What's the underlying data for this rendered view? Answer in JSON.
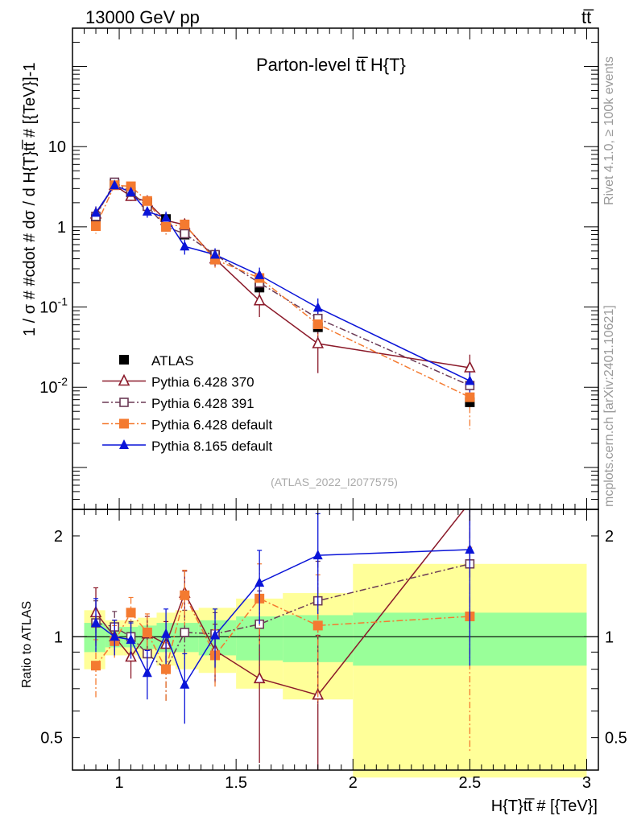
{
  "header": {
    "left": "13000 GeV pp",
    "right": "tt̅"
  },
  "side_labels": {
    "rivet": "Rivet 4.1.0, ≥ 100k events",
    "mcplots": "mcplots.cern.ch [arXiv:2401.10621]"
  },
  "chart_data": [
    {
      "type": "line",
      "panel": "main",
      "title": "Parton-level tt̅ H{T}",
      "ylabel": "1 / σ # #cdot # dσ / d H{T}tt̅ # [{TeV}]-1",
      "xlabel": "H{T}tt̅ # [{TeV}]",
      "yscale": "log",
      "ylim": [
        0.0003,
        300
      ],
      "xlim": [
        0.8,
        3.05
      ],
      "yticks": [
        {
          "value": 0.01,
          "label": "10-2"
        },
        {
          "value": 0.1,
          "label": "10-1"
        },
        {
          "value": 1,
          "label": "1"
        },
        {
          "value": 10,
          "label": "10"
        }
      ],
      "watermark": "(ATLAS_2022_I2077575)",
      "bins": [
        [
          0.85,
          0.94
        ],
        [
          0.94,
          1.02
        ],
        [
          1.02,
          1.08
        ],
        [
          1.08,
          1.16
        ],
        [
          1.16,
          1.24
        ],
        [
          1.24,
          1.34
        ],
        [
          1.34,
          1.5
        ],
        [
          1.5,
          1.7
        ],
        [
          1.7,
          2.0
        ],
        [
          2.0,
          3.0
        ]
      ],
      "x": [
        0.9,
        0.98,
        1.05,
        1.12,
        1.2,
        1.28,
        1.41,
        1.6,
        1.85,
        2.5
      ],
      "series": [
        {
          "name": "ATLAS",
          "style": "data",
          "color": "#000000",
          "marker": "square-filled",
          "values": [
            1.25,
            3.4,
            2.7,
            2.0,
            1.25,
            0.8,
            0.44,
            0.175,
            0.056,
            0.0065
          ],
          "band_inner": [
            0.1,
            0.07,
            0.07,
            0.08,
            0.1,
            0.1,
            0.12,
            0.15,
            0.16,
            0.18
          ],
          "band_outer": [
            0.2,
            0.12,
            0.12,
            0.14,
            0.18,
            0.2,
            0.22,
            0.3,
            0.35,
            0.65
          ]
        },
        {
          "name": "Pythia 6.428 370",
          "style": "solid",
          "color": "#8b1a2a",
          "marker": "triangle-open",
          "values": [
            1.45,
            3.3,
            2.4,
            2.05,
            1.2,
            1.06,
            0.4,
            0.12,
            0.035,
            0.0175
          ],
          "errors": [
            0.3,
            0.4,
            0.3,
            0.25,
            0.2,
            0.18,
            0.08,
            0.045,
            0.02,
            0.008
          ]
        },
        {
          "name": "Pythia 6.428 391",
          "style": "dashdot",
          "color": "#6b3a55",
          "marker": "square-open",
          "values": [
            1.35,
            3.6,
            2.7,
            1.8,
            1.0,
            0.82,
            0.45,
            0.2,
            0.072,
            0.0105
          ],
          "errors": [
            0.25,
            0.4,
            0.3,
            0.25,
            0.2,
            0.15,
            0.08,
            0.05,
            0.025,
            0.005
          ]
        },
        {
          "name": "Pythia 6.428 default",
          "style": "dashdot",
          "color": "#f47a30",
          "marker": "square-filled",
          "values": [
            1.02,
            3.3,
            3.2,
            2.1,
            1.0,
            1.07,
            0.39,
            0.23,
            0.061,
            0.0075
          ],
          "errors": [
            0.2,
            0.35,
            0.35,
            0.3,
            0.2,
            0.2,
            0.08,
            0.06,
            0.025,
            0.0045
          ]
        },
        {
          "name": "Pythia 8.165 default",
          "style": "solid",
          "color": "#0a14d8",
          "marker": "triangle-filled",
          "values": [
            1.5,
            3.3,
            2.7,
            1.55,
            1.3,
            0.57,
            0.45,
            0.25,
            0.098,
            0.012
          ],
          "errors": [
            0.3,
            0.4,
            0.3,
            0.25,
            0.25,
            0.12,
            0.09,
            0.06,
            0.03,
            0.006
          ]
        }
      ]
    },
    {
      "type": "line",
      "panel": "ratio",
      "ylabel": "Ratio to ATLAS",
      "xlabel": "H{T}tt̅ # [{TeV}]",
      "yscale": "log",
      "ylim": [
        0.4,
        2.4
      ],
      "xlim": [
        0.8,
        3.05
      ],
      "yticks": [
        {
          "value": 0.5,
          "label": "0.5"
        },
        {
          "value": 1,
          "label": "1"
        },
        {
          "value": 2,
          "label": "2"
        }
      ],
      "xticks": [
        {
          "value": 1,
          "label": "1"
        },
        {
          "value": 1.5,
          "label": "1.5"
        },
        {
          "value": 2,
          "label": "2"
        },
        {
          "value": 2.5,
          "label": "2.5"
        },
        {
          "value": 3,
          "label": "3"
        }
      ],
      "x": [
        0.9,
        0.98,
        1.05,
        1.12,
        1.2,
        1.28,
        1.41,
        1.6,
        1.85,
        2.5
      ],
      "series": [
        {
          "name": "Pythia 6.428 370",
          "values": [
            1.18,
            1.0,
            0.87,
            1.02,
            0.95,
            1.35,
            0.91,
            0.75,
            0.67,
            2.7
          ],
          "errors": [
            0.22,
            0.12,
            0.12,
            0.13,
            0.16,
            0.22,
            0.18,
            0.33,
            0.34,
            1.2
          ]
        },
        {
          "name": "Pythia 6.428 391",
          "values": [
            1.1,
            1.07,
            1.0,
            0.89,
            0.8,
            1.03,
            1.02,
            1.09,
            1.28,
            1.65
          ],
          "errors": [
            0.18,
            0.12,
            0.11,
            0.12,
            0.16,
            0.17,
            0.16,
            0.28,
            0.4,
            0.8
          ]
        },
        {
          "name": "Pythia 6.428 default",
          "values": [
            0.82,
            0.97,
            1.18,
            1.03,
            0.8,
            1.33,
            0.88,
            1.3,
            1.08,
            1.15
          ],
          "errors": [
            0.16,
            0.11,
            0.13,
            0.14,
            0.16,
            0.25,
            0.17,
            0.35,
            0.45,
            0.7
          ]
        },
        {
          "name": "Pythia 8.165 default",
          "values": [
            1.1,
            1.0,
            0.98,
            0.78,
            1.02,
            0.72,
            1.01,
            1.45,
            1.75,
            1.82
          ],
          "errors": [
            0.2,
            0.12,
            0.12,
            0.13,
            0.19,
            0.17,
            0.2,
            0.36,
            0.58,
            1.0
          ]
        }
      ]
    }
  ]
}
